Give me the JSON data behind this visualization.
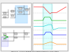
{
  "title": "Figure 24 - Active Clamping with a bipolar transistor driver stage",
  "bg_color": "#f0f0f0",
  "circuit_bg": "#ffffff",
  "highlight_color": "#aaddff",
  "waveform_colors": {
    "red": "#ff0000",
    "green": "#00aa00",
    "cyan": "#00cccc",
    "blue": "#0000ff",
    "orange": "#ff8800"
  },
  "caption": "Figure 24 - Active Clamping with a bipolar transistor driver stage"
}
